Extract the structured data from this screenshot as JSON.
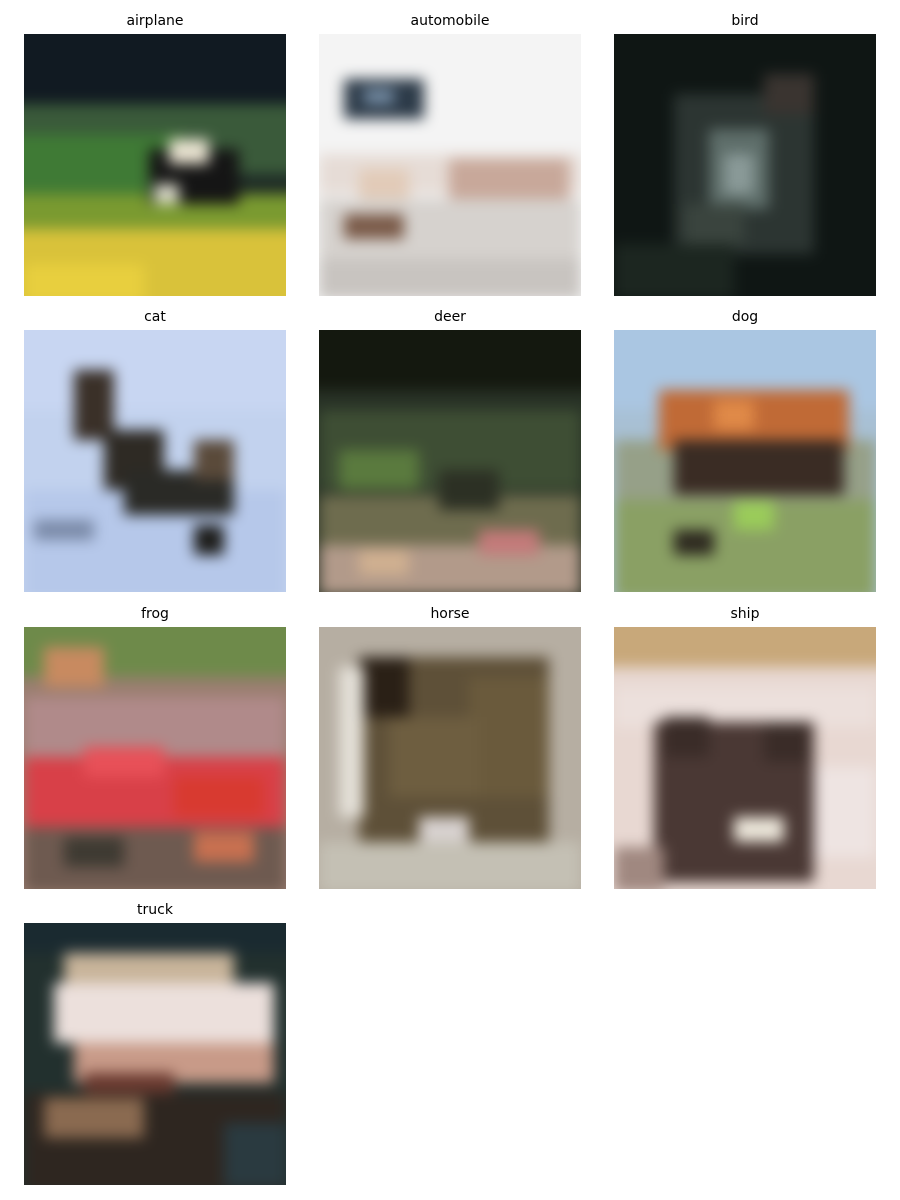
{
  "figure": {
    "panels": [
      {
        "label": "airplane"
      },
      {
        "label": "automobile"
      },
      {
        "label": "bird"
      },
      {
        "label": "cat"
      },
      {
        "label": "deer"
      },
      {
        "label": "dog"
      },
      {
        "label": "frog"
      },
      {
        "label": "horse"
      },
      {
        "label": "ship"
      },
      {
        "label": "truck"
      }
    ]
  }
}
